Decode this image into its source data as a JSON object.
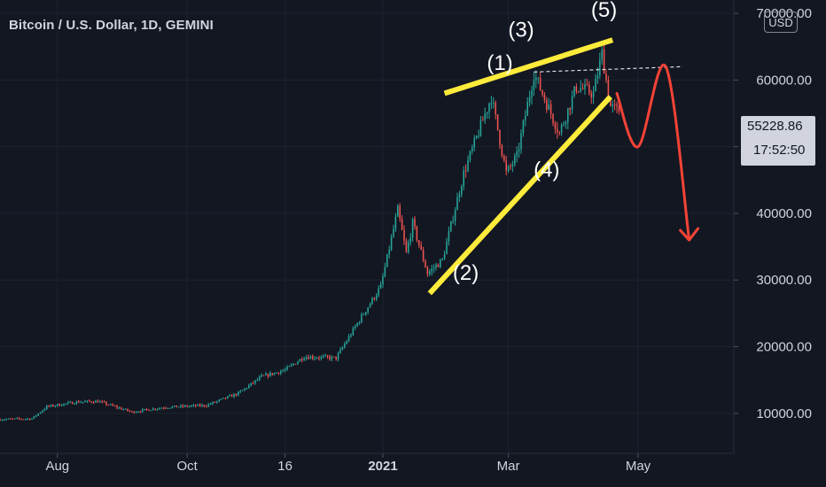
{
  "header": {
    "title": "Bitcoin / U.S. Dollar, 1D, GEMINI",
    "currency": "USD"
  },
  "price_tag": {
    "price": "55228.86",
    "countdown": "17:52:50"
  },
  "colors": {
    "background": "#131722",
    "up": "#26a69a",
    "down": "#ef5350",
    "trendline": "#ffeb3b",
    "projection": "#f44336",
    "axis_text": "#d1d4dc"
  },
  "chart_data": {
    "type": "candlestick",
    "title": "Bitcoin / U.S. Dollar, 1D, GEMINI",
    "xaxis": {
      "tick_labels": [
        "Aug",
        "Oct",
        "16",
        "2021",
        "Mar",
        "May"
      ],
      "tick_dates": [
        "2020-08-01",
        "2020-10-01",
        "2020-11-16",
        "2021-01-01",
        "2021-03-01",
        "2021-05-01"
      ],
      "range": [
        "2020-07-05",
        "2021-06-15"
      ]
    },
    "yaxis": {
      "tick_labels": [
        "10000.00",
        "20000.00",
        "30000.00",
        "40000.00",
        "50000.00",
        "60000.00",
        "70000.00"
      ],
      "ticks": [
        10000,
        20000,
        30000,
        40000,
        50000,
        60000,
        70000
      ],
      "range": [
        4000,
        72000
      ]
    },
    "last_price": 55228.86,
    "price_path": [
      [
        "2020-07-05",
        9100
      ],
      [
        "2020-07-20",
        9200
      ],
      [
        "2020-07-27",
        11000
      ],
      [
        "2020-08-10",
        11700
      ],
      [
        "2020-08-20",
        11800
      ],
      [
        "2020-09-05",
        10200
      ],
      [
        "2020-09-20",
        10900
      ],
      [
        "2020-10-10",
        11200
      ],
      [
        "2020-10-25",
        13000
      ],
      [
        "2020-11-05",
        15500
      ],
      [
        "2020-11-16",
        16500
      ],
      [
        "2020-11-25",
        18500
      ],
      [
        "2020-12-10",
        18300
      ],
      [
        "2020-12-20",
        23500
      ],
      [
        "2020-12-31",
        29000
      ],
      [
        "2021-01-08",
        40500
      ],
      [
        "2021-01-12",
        34000
      ],
      [
        "2021-01-15",
        38500
      ],
      [
        "2021-01-22",
        31000
      ],
      [
        "2021-01-29",
        33000
      ],
      [
        "2021-02-08",
        46000
      ],
      [
        "2021-02-21",
        57500
      ],
      [
        "2021-02-28",
        46000
      ],
      [
        "2021-03-05",
        48500
      ],
      [
        "2021-03-13",
        61000
      ],
      [
        "2021-03-25",
        52000
      ],
      [
        "2021-04-02",
        59000
      ],
      [
        "2021-04-10",
        58000
      ],
      [
        "2021-04-14",
        64000
      ],
      [
        "2021-04-18",
        56000
      ],
      [
        "2021-04-22",
        55228
      ]
    ],
    "annotations": {
      "wave_labels": [
        {
          "text": "(1)",
          "date": "2021-02-25",
          "price": 61500
        },
        {
          "text": "(2)",
          "date": "2021-02-09",
          "price": 30000
        },
        {
          "text": "(3)",
          "date": "2021-03-07",
          "price": 66500
        },
        {
          "text": "(4)",
          "date": "2021-03-19",
          "price": 45500
        },
        {
          "text": "(5)",
          "date": "2021-04-15",
          "price": 69500
        }
      ],
      "upper_trendline": {
        "from": [
          "2021-01-30",
          58000
        ],
        "to": [
          "2021-04-19",
          66000
        ]
      },
      "lower_trendline": {
        "from": [
          "2021-01-23",
          28000
        ],
        "to": [
          "2021-04-18",
          57500
        ]
      },
      "resistance_line": {
        "from": [
          "2021-03-13",
          61200
        ],
        "to": [
          "2021-05-22",
          62000
        ]
      },
      "projection_path": [
        [
          "2021-04-21",
          58000
        ],
        [
          "2021-05-01",
          50000
        ],
        [
          "2021-05-14",
          62000
        ],
        [
          "2021-05-25",
          36000
        ]
      ]
    }
  }
}
